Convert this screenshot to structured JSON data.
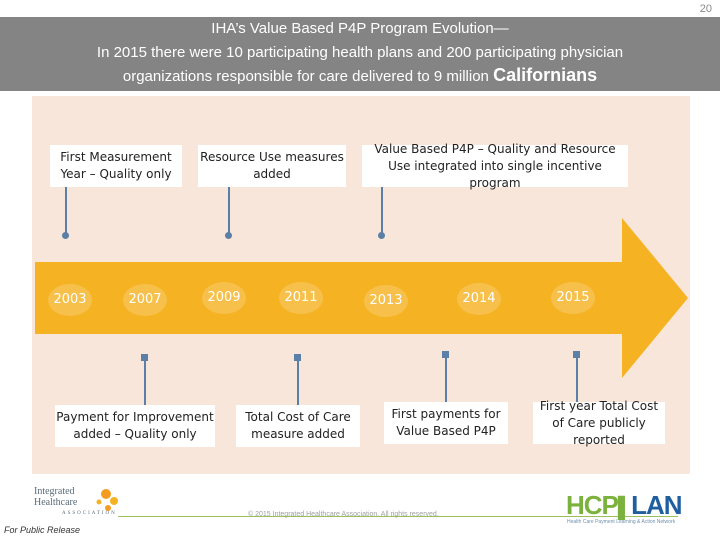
{
  "page_number": "20",
  "title": {
    "line1": "IHA’s Value Based P4P Program Evolution—",
    "line2": "In 2015 there were 10 participating health plans and 200 participating physician",
    "line3_main": "organizations responsible for care delivered to 9 million ",
    "line3_big": "Californians"
  },
  "top_boxes": [
    {
      "text": "First Measurement Year – Quality only"
    },
    {
      "text": "Resource Use measures added"
    },
    {
      "text": "Value Based P4P – Quality and Resource Use integrated into single incentive program"
    }
  ],
  "bottom_boxes": [
    {
      "text": "Payment for Improvement added – Quality only"
    },
    {
      "text": "Total Cost of Care measure added"
    },
    {
      "text": "First payments for Value Based P4P"
    },
    {
      "text": "First year Total Cost of Care publicly reported"
    }
  ],
  "years": [
    "2003",
    "2007",
    "2009",
    "2011",
    "2013",
    "2014",
    "2015"
  ],
  "footer": {
    "copyright": "© 2015 Integrated Healthcare Association. All rights reserved.",
    "for_public_release": "For Public Release",
    "iha_logo_line1": "Integrated",
    "iha_logo_line2": "Healthcare",
    "iha_logo_line3": "ASSOCIATION",
    "hcp_logo_hcp": "HCP",
    "hcp_logo_lan": "LAN",
    "hcp_logo_sub": "Health Care Payment Learning & Action Network"
  },
  "colors": {
    "title_bar": "#848484",
    "panel": "#f9e6da",
    "arrow": "#f5b324",
    "connector": "#5b7fa6"
  }
}
